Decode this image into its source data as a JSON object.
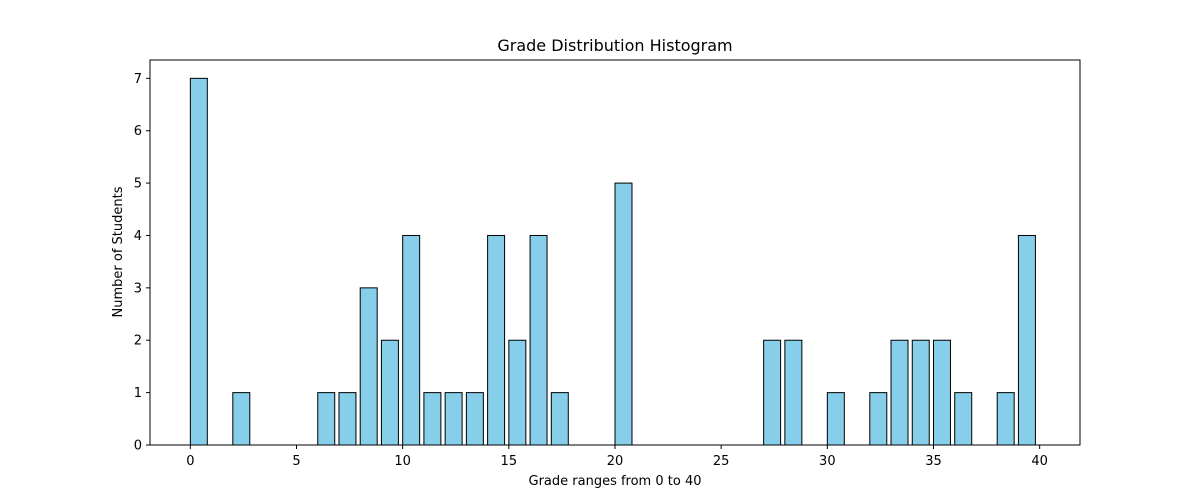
{
  "chart_data": {
    "type": "bar",
    "title": "Grade Distribution Histogram",
    "xlabel": "Grade ranges from 0 to 40",
    "ylabel": "Number of Students",
    "x": [
      0,
      1,
      2,
      3,
      4,
      5,
      6,
      7,
      8,
      9,
      10,
      11,
      12,
      13,
      14,
      15,
      16,
      17,
      18,
      19,
      20,
      21,
      22,
      23,
      24,
      25,
      26,
      27,
      28,
      29,
      30,
      31,
      32,
      33,
      34,
      35,
      36,
      37,
      38,
      39
    ],
    "values": [
      7,
      0,
      1,
      0,
      0,
      0,
      1,
      1,
      3,
      2,
      4,
      1,
      1,
      1,
      4,
      2,
      4,
      1,
      0,
      0,
      5,
      0,
      0,
      0,
      0,
      0,
      0,
      2,
      2,
      0,
      1,
      0,
      1,
      2,
      2,
      2,
      1,
      0,
      1,
      4
    ],
    "xlim": [
      -1.9,
      41.9
    ],
    "ylim": [
      0,
      7.35
    ],
    "xticks": [
      0,
      5,
      10,
      15,
      20,
      25,
      30,
      35,
      40
    ],
    "yticks": [
      0,
      1,
      2,
      3,
      4,
      5,
      6,
      7
    ],
    "grid": false,
    "colors": {
      "bar_fill": "#87CEEB",
      "bar_edge": "#000000"
    }
  }
}
